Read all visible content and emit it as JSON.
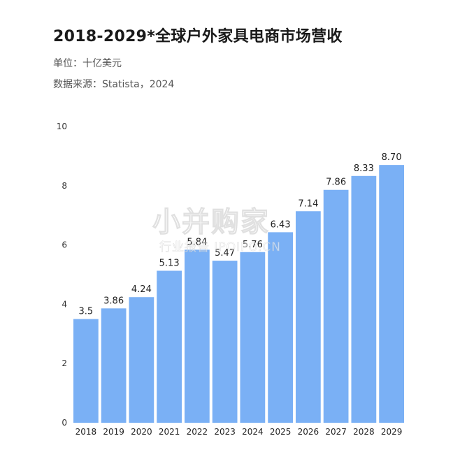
{
  "header": {
    "title": "2018-2029*全球户外家具电商市场营收",
    "unit": "单位：十亿美元",
    "source": "数据来源：Statista，2024"
  },
  "watermark": {
    "logo": "小并购家",
    "sub": "行业报告 IPOIPO.CN"
  },
  "colors": {
    "bar": "#7ab0f5"
  },
  "chart_data": {
    "type": "bar",
    "categories": [
      "2018",
      "2019",
      "2020",
      "2021",
      "2022",
      "2023",
      "2024",
      "2025",
      "2026",
      "2027",
      "2028",
      "2029"
    ],
    "values": [
      3.5,
      3.86,
      4.24,
      5.13,
      5.84,
      5.47,
      5.76,
      6.43,
      7.14,
      7.86,
      8.33,
      8.7
    ],
    "value_labels": [
      "3.5",
      "3.86",
      "4.24",
      "5.13",
      "5.84",
      "5.47",
      "5.76",
      "6.43",
      "7.14",
      "7.86",
      "8.33",
      "8.70"
    ],
    "title": "2018-2029*全球户外家具电商市场营收",
    "xlabel": "",
    "ylabel": "",
    "ylim": [
      0,
      10
    ],
    "yticks": [
      0,
      2,
      4,
      6,
      8,
      10
    ],
    "grid": false
  }
}
